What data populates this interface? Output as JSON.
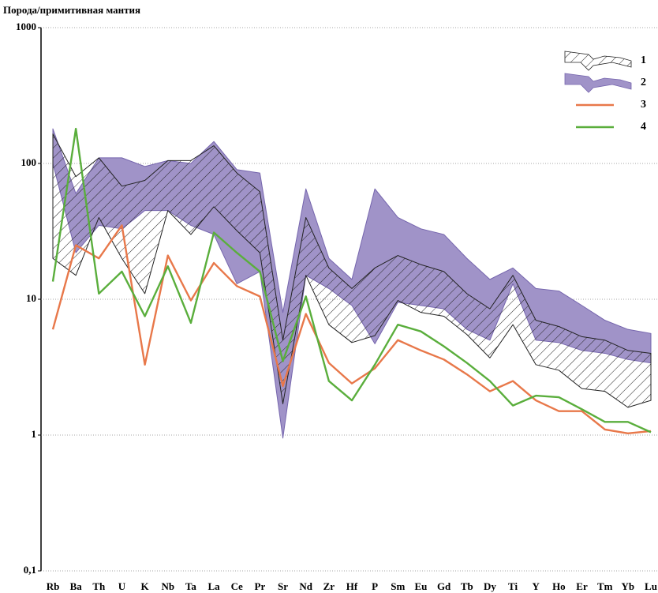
{
  "chart_data": {
    "type": "line",
    "title": "Порода/примитивная мантия",
    "categories": [
      "Rb",
      "Ba",
      "Th",
      "U",
      "K",
      "Nb",
      "Ta",
      "La",
      "Ce",
      "Pr",
      "Sr",
      "Nd",
      "Zr",
      "Hf",
      "P",
      "Sm",
      "Eu",
      "Gd",
      "Tb",
      "Dy",
      "Ti",
      "Y",
      "Ho",
      "Er",
      "Tm",
      "Yb",
      "Lu"
    ],
    "y_scale": "log",
    "ylim": [
      0.1,
      1000
    ],
    "yticks": [
      {
        "value": 0.1,
        "label": "0,1"
      },
      1,
      10,
      100,
      1000
    ],
    "grid": true,
    "legend": "upper right",
    "series": [
      {
        "name": "2",
        "kind": "band",
        "color": "#a093c8",
        "upper": [
          180,
          60,
          110,
          110,
          95,
          105,
          100,
          145,
          90,
          85,
          8,
          65,
          20,
          14,
          65,
          40,
          33,
          30,
          20,
          14,
          17,
          12,
          11.5,
          9,
          7,
          6,
          5.6
        ],
        "lower": [
          100,
          22,
          35,
          33,
          45,
          45,
          35,
          30,
          13,
          16,
          0.95,
          15,
          12,
          9,
          4.7,
          9.5,
          9,
          8.5,
          6,
          5,
          13,
          5,
          4.8,
          4.2,
          4,
          3.6,
          3.4
        ]
      },
      {
        "name": "1",
        "kind": "hatched-band",
        "color": "#222222",
        "upper": [
          165,
          80,
          110,
          68,
          75,
          105,
          105,
          135,
          85,
          62,
          5,
          40,
          17,
          12,
          17,
          21,
          18,
          16,
          11,
          8.5,
          15,
          7,
          6.3,
          5.3,
          5,
          4.2,
          4
        ],
        "lower": [
          20,
          15,
          40,
          20,
          11,
          45,
          30,
          48,
          32,
          22,
          1.7,
          15,
          6.5,
          4.8,
          5.4,
          9.8,
          8,
          7.5,
          5.5,
          3.7,
          6.5,
          3.3,
          3,
          2.2,
          2.1,
          1.6,
          1.8
        ]
      },
      {
        "name": "3",
        "kind": "line",
        "color": "#e8784a",
        "values": [
          6,
          25,
          20,
          35,
          3.3,
          21,
          9.8,
          18.5,
          12.5,
          10.5,
          2.3,
          7.8,
          3.4,
          2.4,
          3.1,
          5,
          4.2,
          3.6,
          2.8,
          2.1,
          2.5,
          1.8,
          1.5,
          1.5,
          1.1,
          1.03,
          1.07
        ]
      },
      {
        "name": "4",
        "kind": "line",
        "color": "#5aae3c",
        "values": [
          13.5,
          180,
          11,
          16,
          7.5,
          17.5,
          6.7,
          31,
          22,
          16,
          3.5,
          10.5,
          2.5,
          1.8,
          3.3,
          6.5,
          5.8,
          4.5,
          3.4,
          2.5,
          1.65,
          1.95,
          1.9,
          1.55,
          1.25,
          1.25,
          1.05
        ]
      }
    ]
  }
}
